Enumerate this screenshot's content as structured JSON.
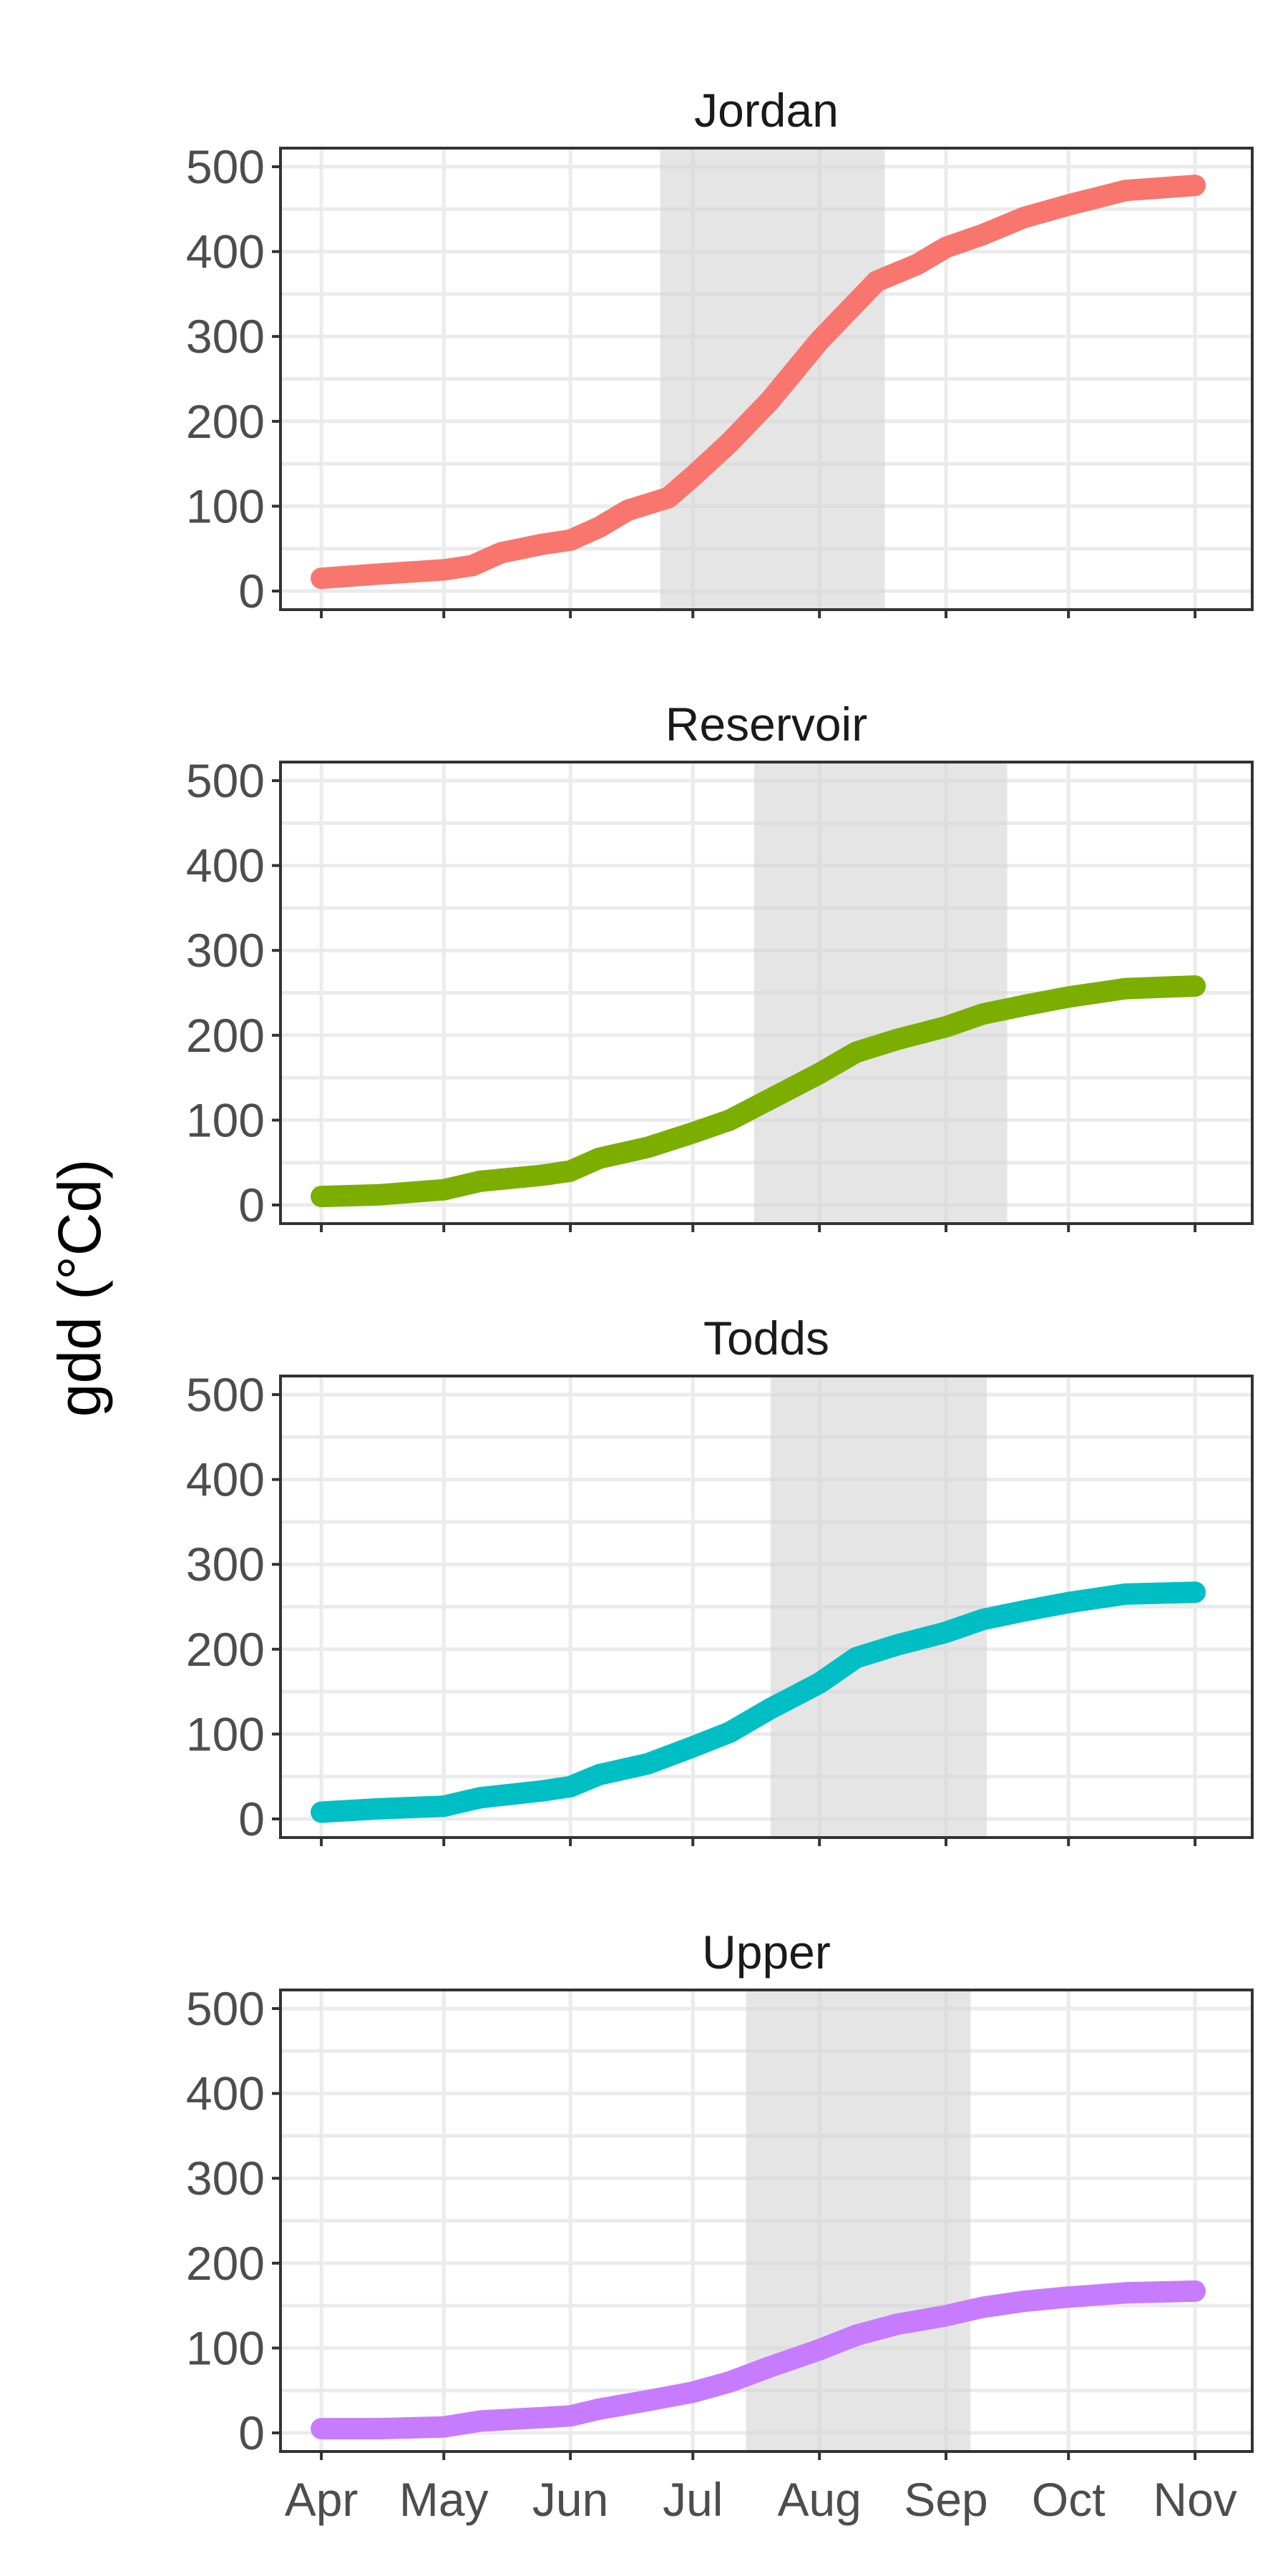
{
  "chart_data": {
    "type": "line",
    "ylabel": "gdd (°Cd)",
    "xlabel": "",
    "ylim": [
      0,
      500
    ],
    "y_ticks": [
      0,
      100,
      200,
      300,
      400,
      500
    ],
    "y_tick_labels": [
      "0",
      "100",
      "200",
      "300",
      "400",
      "500"
    ],
    "x_ticks": [
      "2000-04-01",
      "2000-05-01",
      "2000-06-01",
      "2000-07-01",
      "2000-08-01",
      "2000-09-01",
      "2000-10-01",
      "2000-11-01"
    ],
    "x_tick_labels": [
      "Apr",
      "May",
      "Jun",
      "Jul",
      "Aug",
      "Sep",
      "Oct",
      "Nov"
    ],
    "xlim": [
      "2000-03-22",
      "2000-11-15"
    ],
    "grid": true,
    "legend": "none",
    "facets": [
      {
        "name": "Jordan",
        "color": "#F8766D",
        "shaded_range": [
          "2000-06-23",
          "2000-08-17"
        ],
        "points": [
          [
            "2000-04-01",
            15
          ],
          [
            "2000-04-15",
            20
          ],
          [
            "2000-05-01",
            25
          ],
          [
            "2000-05-08",
            30
          ],
          [
            "2000-05-15",
            45
          ],
          [
            "2000-05-25",
            55
          ],
          [
            "2000-06-01",
            60
          ],
          [
            "2000-06-08",
            75
          ],
          [
            "2000-06-15",
            95
          ],
          [
            "2000-06-25",
            110
          ],
          [
            "2000-07-01",
            135
          ],
          [
            "2000-07-10",
            175
          ],
          [
            "2000-07-20",
            225
          ],
          [
            "2000-08-01",
            295
          ],
          [
            "2000-08-08",
            330
          ],
          [
            "2000-08-15",
            365
          ],
          [
            "2000-08-25",
            385
          ],
          [
            "2000-09-01",
            405
          ],
          [
            "2000-09-10",
            420
          ],
          [
            "2000-09-20",
            440
          ],
          [
            "2000-10-01",
            455
          ],
          [
            "2000-10-15",
            472
          ],
          [
            "2000-11-01",
            478
          ]
        ]
      },
      {
        "name": "Reservoir",
        "color": "#7CAE00",
        "shaded_range": [
          "2000-07-16",
          "2000-09-16"
        ],
        "points": [
          [
            "2000-04-01",
            10
          ],
          [
            "2000-04-15",
            12
          ],
          [
            "2000-05-01",
            18
          ],
          [
            "2000-05-10",
            28
          ],
          [
            "2000-05-25",
            35
          ],
          [
            "2000-06-01",
            40
          ],
          [
            "2000-06-08",
            55
          ],
          [
            "2000-06-20",
            68
          ],
          [
            "2000-07-01",
            85
          ],
          [
            "2000-07-10",
            100
          ],
          [
            "2000-07-20",
            125
          ],
          [
            "2000-08-01",
            155
          ],
          [
            "2000-08-10",
            180
          ],
          [
            "2000-08-20",
            195
          ],
          [
            "2000-09-01",
            210
          ],
          [
            "2000-09-10",
            225
          ],
          [
            "2000-09-20",
            235
          ],
          [
            "2000-10-01",
            245
          ],
          [
            "2000-10-15",
            255
          ],
          [
            "2000-11-01",
            258
          ]
        ]
      },
      {
        "name": "Todds",
        "color": "#00BFC4",
        "shaded_range": [
          "2000-07-20",
          "2000-09-11"
        ],
        "points": [
          [
            "2000-04-01",
            8
          ],
          [
            "2000-04-15",
            12
          ],
          [
            "2000-05-01",
            15
          ],
          [
            "2000-05-10",
            25
          ],
          [
            "2000-05-25",
            33
          ],
          [
            "2000-06-01",
            38
          ],
          [
            "2000-06-08",
            52
          ],
          [
            "2000-06-20",
            65
          ],
          [
            "2000-07-01",
            85
          ],
          [
            "2000-07-10",
            102
          ],
          [
            "2000-07-20",
            130
          ],
          [
            "2000-08-01",
            160
          ],
          [
            "2000-08-10",
            190
          ],
          [
            "2000-08-20",
            205
          ],
          [
            "2000-09-01",
            220
          ],
          [
            "2000-09-10",
            235
          ],
          [
            "2000-09-20",
            245
          ],
          [
            "2000-10-01",
            255
          ],
          [
            "2000-10-15",
            265
          ],
          [
            "2000-11-01",
            267
          ]
        ]
      },
      {
        "name": "Upper",
        "color": "#C77CFF",
        "shaded_range": [
          "2000-07-14",
          "2000-09-07"
        ],
        "points": [
          [
            "2000-04-01",
            5
          ],
          [
            "2000-04-15",
            5
          ],
          [
            "2000-05-01",
            7
          ],
          [
            "2000-05-10",
            14
          ],
          [
            "2000-05-25",
            18
          ],
          [
            "2000-06-01",
            20
          ],
          [
            "2000-06-08",
            28
          ],
          [
            "2000-06-20",
            38
          ],
          [
            "2000-07-01",
            48
          ],
          [
            "2000-07-10",
            60
          ],
          [
            "2000-07-20",
            78
          ],
          [
            "2000-08-01",
            98
          ],
          [
            "2000-08-10",
            115
          ],
          [
            "2000-08-20",
            128
          ],
          [
            "2000-09-01",
            138
          ],
          [
            "2000-09-10",
            148
          ],
          [
            "2000-09-20",
            155
          ],
          [
            "2000-10-01",
            160
          ],
          [
            "2000-10-15",
            165
          ],
          [
            "2000-11-01",
            167
          ]
        ]
      }
    ]
  }
}
